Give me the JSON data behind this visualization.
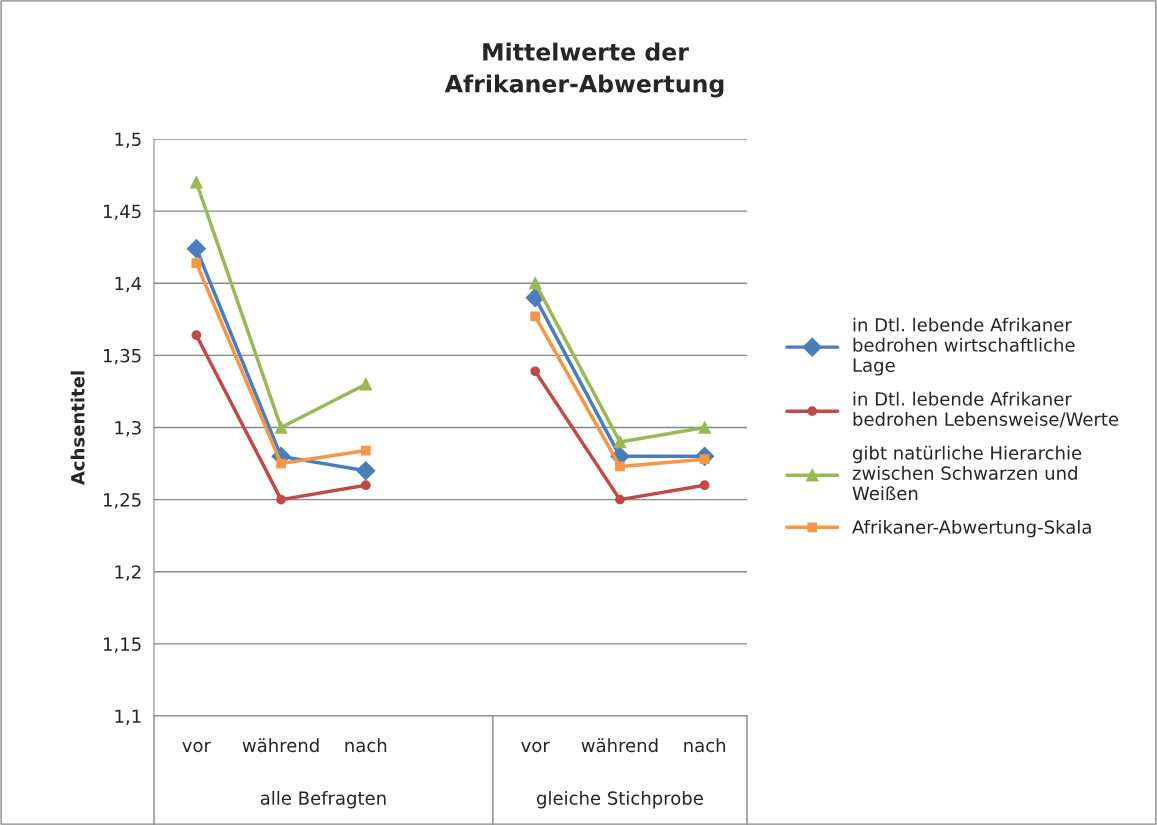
{
  "chart_data": {
    "type": "line",
    "title": "Mittelwerte der\nAfrikaner-Abwertung",
    "ylabel": "Achsentitel",
    "categories": [
      "vor",
      "während",
      "nach",
      null,
      "vor",
      "während",
      "nach"
    ],
    "annotations": [
      "alle Befragten",
      "gleiche Stichprobe"
    ],
    "series": [
      {
        "name": "in Dtl. lebende Afrikaner bedrohen wirtschaftliche Lage",
        "color": "#4a7ebb",
        "marker": "diamond",
        "values": [
          1.424,
          1.28,
          1.27,
          null,
          1.39,
          1.28,
          1.28
        ]
      },
      {
        "name": "in Dtl. lebende Afrikaner bedrohen Lebensweise/Werte",
        "color": "#be4b48",
        "marker": "circle",
        "values": [
          1.364,
          1.25,
          1.26,
          null,
          1.339,
          1.25,
          1.26
        ]
      },
      {
        "name": "gibt natürliche Hierarchie zwischen Schwarzen und Weißen",
        "color": "#98b954",
        "marker": "triangle",
        "values": [
          1.47,
          1.3,
          1.33,
          null,
          1.4,
          1.29,
          1.3
        ]
      },
      {
        "name": "Afrikaner-Abwertung-Skala",
        "color": "#f79646",
        "marker": "square",
        "values": [
          1.414,
          1.275,
          1.284,
          null,
          1.377,
          1.273,
          1.278
        ]
      }
    ],
    "ylim": [
      1.1,
      1.5
    ],
    "yticks": [
      {
        "value": 1.1,
        "label": "1,1"
      },
      {
        "value": 1.15,
        "label": "1,15"
      },
      {
        "value": 1.2,
        "label": "1,2"
      },
      {
        "value": 1.25,
        "label": "1,25"
      },
      {
        "value": 1.3,
        "label": "1,3"
      },
      {
        "value": 1.35,
        "label": "1,35"
      },
      {
        "value": 1.4,
        "label": "1,4"
      },
      {
        "value": 1.45,
        "label": "1,45"
      },
      {
        "value": 1.5,
        "label": "1,5"
      }
    ],
    "grid": "y",
    "legend": "right"
  }
}
